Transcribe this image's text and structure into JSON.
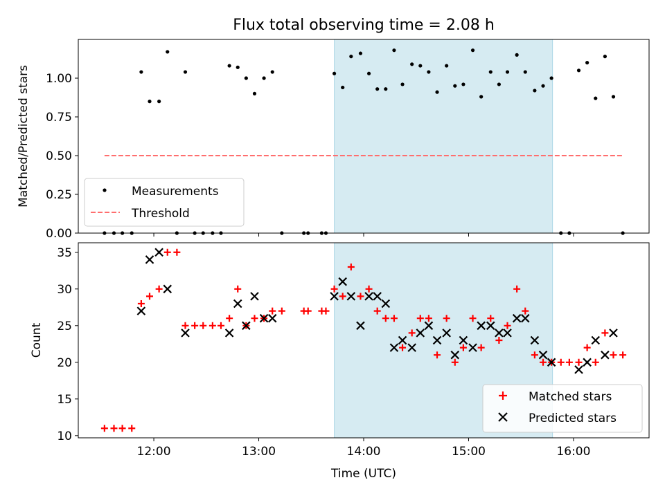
{
  "chart_data": [
    {
      "type": "scatter",
      "title": "Flux total observing time = 2.08 h",
      "xlabel": "",
      "ylabel": "Matched/Predicted stars",
      "x_axis": "time (UTC), decimal hours",
      "xlim": [
        11.28,
        16.72
      ],
      "ylim": [
        0.0,
        1.25
      ],
      "y_ticks": [
        0.0,
        0.25,
        0.5,
        0.75,
        1.0
      ],
      "y_tick_labels": [
        "0.00",
        "0.25",
        "0.50",
        "0.75",
        "1.00"
      ],
      "highlight_span": {
        "x": [
          13.72,
          15.8
        ],
        "color": "#add8e6"
      },
      "legend": {
        "location": "lower-left",
        "entries": [
          "Measurements",
          "Threshold"
        ]
      },
      "series": [
        {
          "name": "Measurements",
          "marker": "dot",
          "color": "#000000",
          "points": [
            [
              11.53,
              0.0
            ],
            [
              11.62,
              0.0
            ],
            [
              11.7,
              0.0
            ],
            [
              11.79,
              0.0
            ],
            [
              11.88,
              1.04
            ],
            [
              11.96,
              0.85
            ],
            [
              12.05,
              0.85
            ],
            [
              12.13,
              1.17
            ],
            [
              12.22,
              0.0
            ],
            [
              12.3,
              1.04
            ],
            [
              12.39,
              0.0
            ],
            [
              12.47,
              0.0
            ],
            [
              12.56,
              0.0
            ],
            [
              12.64,
              0.0
            ],
            [
              12.72,
              1.08
            ],
            [
              12.8,
              1.07
            ],
            [
              12.88,
              1.0
            ],
            [
              12.96,
              0.9
            ],
            [
              13.05,
              1.0
            ],
            [
              13.13,
              1.04
            ],
            [
              13.22,
              0.0
            ],
            [
              13.43,
              0.0
            ],
            [
              13.47,
              0.0
            ],
            [
              13.6,
              0.0
            ],
            [
              13.64,
              0.0
            ],
            [
              13.72,
              1.03
            ],
            [
              13.8,
              0.94
            ],
            [
              13.88,
              1.14
            ],
            [
              13.97,
              1.16
            ],
            [
              14.05,
              1.03
            ],
            [
              14.13,
              0.93
            ],
            [
              14.21,
              0.93
            ],
            [
              14.29,
              1.18
            ],
            [
              14.37,
              0.96
            ],
            [
              14.46,
              1.09
            ],
            [
              14.54,
              1.08
            ],
            [
              14.62,
              1.04
            ],
            [
              14.7,
              0.91
            ],
            [
              14.79,
              1.08
            ],
            [
              14.87,
              0.95
            ],
            [
              14.95,
              0.96
            ],
            [
              15.04,
              1.18
            ],
            [
              15.12,
              0.88
            ],
            [
              15.21,
              1.04
            ],
            [
              15.29,
              0.96
            ],
            [
              15.37,
              1.04
            ],
            [
              15.46,
              1.15
            ],
            [
              15.54,
              1.04
            ],
            [
              15.63,
              0.92
            ],
            [
              15.71,
              0.95
            ],
            [
              15.79,
              1.0
            ],
            [
              15.88,
              0.0
            ],
            [
              15.96,
              0.0
            ],
            [
              16.05,
              1.05
            ],
            [
              16.13,
              1.1
            ],
            [
              16.21,
              0.87
            ],
            [
              16.3,
              1.14
            ],
            [
              16.38,
              0.88
            ],
            [
              16.47,
              0.0
            ]
          ]
        },
        {
          "name": "Threshold",
          "type": "line",
          "style": "dashed",
          "color": "#ff6e6e",
          "x": [
            11.53,
            16.47
          ],
          "values": [
            0.5,
            0.5
          ]
        }
      ]
    },
    {
      "type": "scatter",
      "title": "",
      "xlabel": "Time (UTC)",
      "ylabel": "Count",
      "x_axis": "time (UTC), decimal hours",
      "xlim": [
        11.28,
        16.72
      ],
      "ylim": [
        9.7,
        36.3
      ],
      "x_ticks": [
        12,
        13,
        14,
        15,
        16
      ],
      "x_tick_labels": [
        "12:00",
        "13:00",
        "14:00",
        "15:00",
        "16:00"
      ],
      "y_ticks": [
        10,
        15,
        20,
        25,
        30,
        35
      ],
      "y_tick_labels": [
        "10",
        "15",
        "20",
        "25",
        "30",
        "35"
      ],
      "highlight_span": {
        "x": [
          13.72,
          15.8
        ],
        "color": "#add8e6"
      },
      "legend": {
        "location": "lower-right",
        "entries": [
          "Matched stars",
          "Predicted stars"
        ]
      },
      "series": [
        {
          "name": "Matched stars",
          "marker": "plus",
          "color": "#ff0000",
          "points": [
            [
              11.53,
              11
            ],
            [
              11.62,
              11
            ],
            [
              11.7,
              11
            ],
            [
              11.79,
              11
            ],
            [
              11.88,
              28
            ],
            [
              11.96,
              29
            ],
            [
              12.05,
              30
            ],
            [
              12.13,
              35
            ],
            [
              12.22,
              35
            ],
            [
              12.3,
              25
            ],
            [
              12.39,
              25
            ],
            [
              12.47,
              25
            ],
            [
              12.56,
              25
            ],
            [
              12.64,
              25
            ],
            [
              12.72,
              26
            ],
            [
              12.8,
              30
            ],
            [
              12.88,
              25
            ],
            [
              12.96,
              26
            ],
            [
              13.05,
              26
            ],
            [
              13.13,
              27
            ],
            [
              13.22,
              27
            ],
            [
              13.43,
              27
            ],
            [
              13.47,
              27
            ],
            [
              13.6,
              27
            ],
            [
              13.64,
              27
            ],
            [
              13.72,
              30
            ],
            [
              13.8,
              29
            ],
            [
              13.88,
              33
            ],
            [
              13.97,
              29
            ],
            [
              14.05,
              30
            ],
            [
              14.13,
              27
            ],
            [
              14.21,
              26
            ],
            [
              14.29,
              26
            ],
            [
              14.37,
              22
            ],
            [
              14.46,
              24
            ],
            [
              14.54,
              26
            ],
            [
              14.62,
              26
            ],
            [
              14.7,
              21
            ],
            [
              14.79,
              26
            ],
            [
              14.87,
              20
            ],
            [
              14.95,
              22
            ],
            [
              15.04,
              26
            ],
            [
              15.12,
              22
            ],
            [
              15.21,
              26
            ],
            [
              15.29,
              23
            ],
            [
              15.37,
              25
            ],
            [
              15.46,
              30
            ],
            [
              15.54,
              27
            ],
            [
              15.63,
              21
            ],
            [
              15.71,
              20
            ],
            [
              15.79,
              20
            ],
            [
              15.88,
              20
            ],
            [
              15.96,
              20
            ],
            [
              16.05,
              20
            ],
            [
              16.13,
              22
            ],
            [
              16.21,
              20
            ],
            [
              16.3,
              24
            ],
            [
              16.38,
              21
            ],
            [
              16.47,
              21
            ]
          ]
        },
        {
          "name": "Predicted stars",
          "marker": "x",
          "color": "#000000",
          "points": [
            [
              11.88,
              27
            ],
            [
              11.96,
              34
            ],
            [
              12.05,
              35
            ],
            [
              12.13,
              30
            ],
            [
              12.3,
              24
            ],
            [
              12.72,
              24
            ],
            [
              12.8,
              28
            ],
            [
              12.88,
              25
            ],
            [
              12.96,
              29
            ],
            [
              13.05,
              26
            ],
            [
              13.13,
              26
            ],
            [
              13.72,
              29
            ],
            [
              13.8,
              31
            ],
            [
              13.88,
              29
            ],
            [
              13.97,
              25
            ],
            [
              14.05,
              29
            ],
            [
              14.13,
              29
            ],
            [
              14.21,
              28
            ],
            [
              14.29,
              22
            ],
            [
              14.37,
              23
            ],
            [
              14.46,
              22
            ],
            [
              14.54,
              24
            ],
            [
              14.62,
              25
            ],
            [
              14.7,
              23
            ],
            [
              14.79,
              24
            ],
            [
              14.87,
              21
            ],
            [
              14.95,
              23
            ],
            [
              15.04,
              22
            ],
            [
              15.12,
              25
            ],
            [
              15.21,
              25
            ],
            [
              15.29,
              24
            ],
            [
              15.37,
              24
            ],
            [
              15.46,
              26
            ],
            [
              15.54,
              26
            ],
            [
              15.63,
              23
            ],
            [
              15.71,
              21
            ],
            [
              15.79,
              20
            ],
            [
              16.05,
              19
            ],
            [
              16.13,
              20
            ],
            [
              16.21,
              23
            ],
            [
              16.3,
              21
            ],
            [
              16.38,
              24
            ]
          ]
        }
      ]
    }
  ]
}
